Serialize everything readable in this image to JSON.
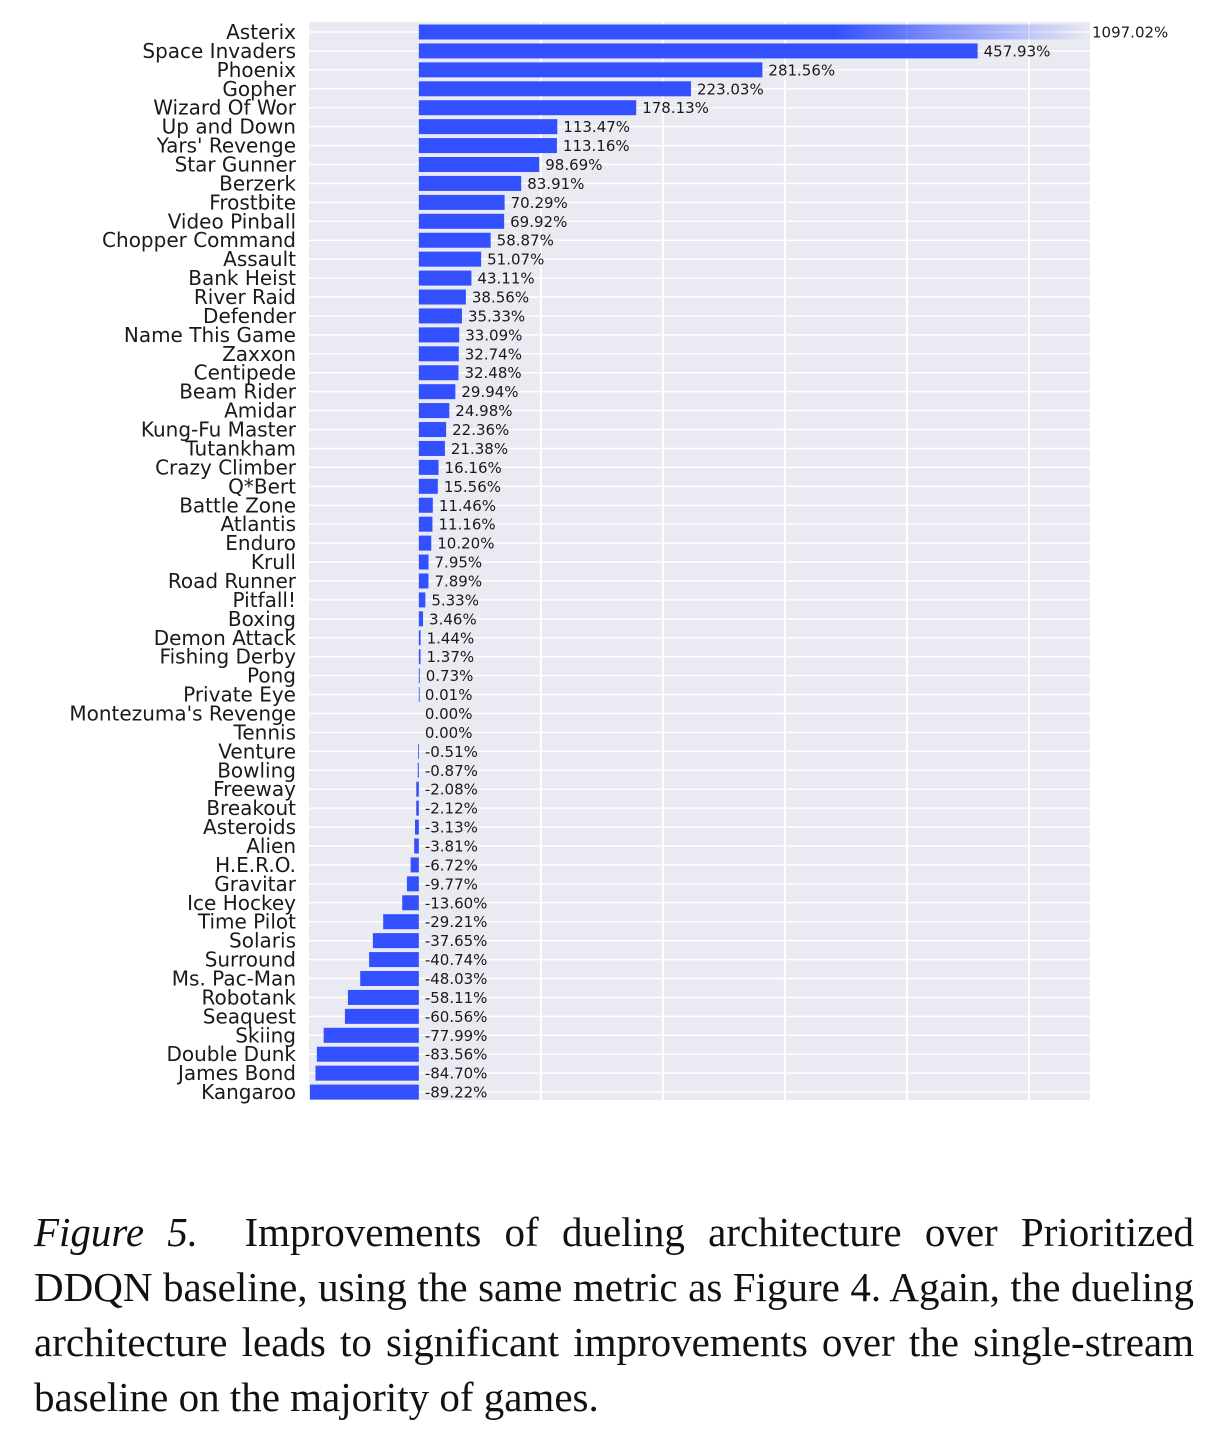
{
  "chart_data": {
    "type": "bar",
    "orientation": "horizontal",
    "bar_color": "#3350ff",
    "background_color": "#eaeaf2",
    "grid": true,
    "value_suffix": "%",
    "categories": [
      "Asterix",
      "Space Invaders",
      "Phoenix",
      "Gopher",
      "Wizard Of Wor",
      "Up and Down",
      "Yars' Revenge",
      "Star Gunner",
      "Berzerk",
      "Frostbite",
      "Video Pinball",
      "Chopper Command",
      "Assault",
      "Bank Heist",
      "River Raid",
      "Defender",
      "Name This Game",
      "Zaxxon",
      "Centipede",
      "Beam Rider",
      "Amidar",
      "Kung-Fu Master",
      "Tutankham",
      "Crazy Climber",
      "Q*Bert",
      "Battle Zone",
      "Atlantis",
      "Enduro",
      "Krull",
      "Road Runner",
      "Pitfall!",
      "Boxing",
      "Demon Attack",
      "Fishing Derby",
      "Pong",
      "Private Eye",
      "Montezuma's Revenge",
      "Tennis",
      "Venture",
      "Bowling",
      "Freeway",
      "Breakout",
      "Asteroids",
      "Alien",
      "H.E.R.O.",
      "Gravitar",
      "Ice Hockey",
      "Time Pilot",
      "Solaris",
      "Surround",
      "Ms. Pac-Man",
      "Robotank",
      "Seaquest",
      "Skiing",
      "Double Dunk",
      "James Bond",
      "Kangaroo"
    ],
    "values": [
      1097.02,
      457.93,
      281.56,
      223.03,
      178.13,
      113.47,
      113.16,
      98.69,
      83.91,
      70.29,
      69.92,
      58.87,
      51.07,
      43.11,
      38.56,
      35.33,
      33.09,
      32.74,
      32.48,
      29.94,
      24.98,
      22.36,
      21.38,
      16.16,
      15.56,
      11.46,
      11.16,
      10.2,
      7.95,
      7.89,
      5.33,
      3.46,
      1.44,
      1.37,
      0.73,
      0.01,
      0.0,
      0.0,
      -0.51,
      -0.87,
      -2.08,
      -2.12,
      -3.13,
      -3.81,
      -6.72,
      -9.77,
      -13.6,
      -29.21,
      -37.65,
      -40.74,
      -48.03,
      -58.11,
      -60.56,
      -77.99,
      -83.56,
      -84.7,
      -89.22
    ],
    "value_labels": [
      "1097.02%",
      "457.93%",
      "281.56%",
      "223.03%",
      "178.13%",
      "113.47%",
      "113.16%",
      "98.69%",
      "83.91%",
      "70.29%",
      "69.92%",
      "58.87%",
      "51.07%",
      "43.11%",
      "38.56%",
      "35.33%",
      "33.09%",
      "32.74%",
      "32.48%",
      "29.94%",
      "24.98%",
      "22.36%",
      "21.38%",
      "16.16%",
      "15.56%",
      "11.46%",
      "11.16%",
      "10.20%",
      "7.95%",
      "7.89%",
      "5.33%",
      "3.46%",
      "1.44%",
      "1.37%",
      "0.73%",
      "0.01%",
      "0.00%",
      "0.00%",
      "-0.51%",
      "-0.87%",
      "-2.08%",
      "-2.12%",
      "-3.13%",
      "-3.81%",
      "-6.72%",
      "-9.77%",
      "-13.60%",
      "-29.21%",
      "-37.65%",
      "-40.74%",
      "-48.03%",
      "-58.11%",
      "-60.56%",
      "-77.99%",
      "-83.56%",
      "-84.70%",
      "-89.22%"
    ],
    "xlim": [
      -90,
      550
    ],
    "x_gridlines": [
      100,
      200,
      300,
      400,
      500
    ],
    "clipped_bar_fades_out": true
  },
  "caption": {
    "figure_number": "Figure 5.",
    "text": "Improvements of dueling architecture over Prioritized DDQN baseline, using the same metric as Figure 4. Again, the dueling architecture leads to significant improvements over the single-stream baseline on the majority of games."
  }
}
